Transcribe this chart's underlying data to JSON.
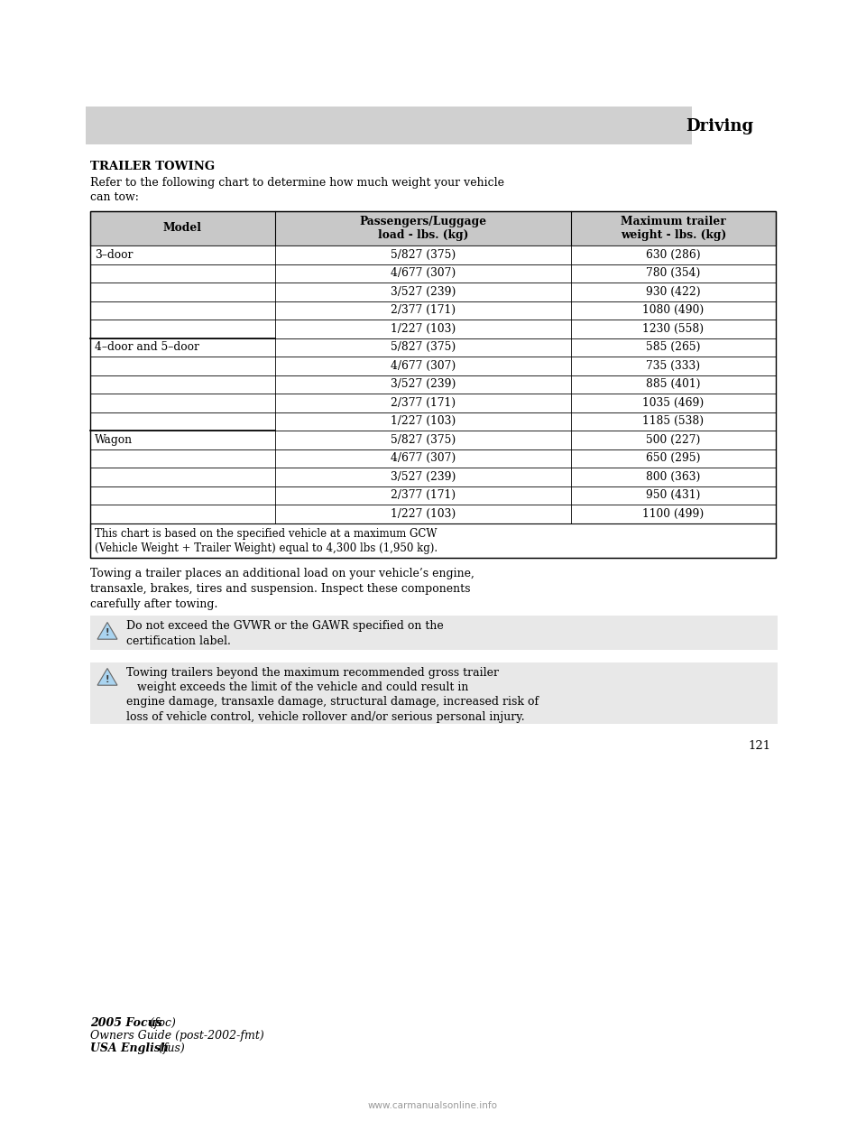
{
  "page_header_text": "Driving",
  "header_bg_color": "#d0d0d0",
  "section_title": "TRAILER TOWING",
  "intro_text": "Refer to the following chart to determine how much weight your vehicle\ncan tow:",
  "table_header": [
    "Model",
    "Passengers/Luggage\nload - lbs. (kg)",
    "Maximum trailer\nweight - lbs. (kg)"
  ],
  "table_data": [
    [
      "3–door",
      "5/827 (375)",
      "630 (286)"
    ],
    [
      "",
      "4/677 (307)",
      "780 (354)"
    ],
    [
      "",
      "3/527 (239)",
      "930 (422)"
    ],
    [
      "",
      "2/377 (171)",
      "1080 (490)"
    ],
    [
      "",
      "1/227 (103)",
      "1230 (558)"
    ],
    [
      "4–door and 5–door",
      "5/827 (375)",
      "585 (265)"
    ],
    [
      "",
      "4/677 (307)",
      "735 (333)"
    ],
    [
      "",
      "3/527 (239)",
      "885 (401)"
    ],
    [
      "",
      "2/377 (171)",
      "1035 (469)"
    ],
    [
      "",
      "1/227 (103)",
      "1185 (538)"
    ],
    [
      "Wagon",
      "5/827 (375)",
      "500 (227)"
    ],
    [
      "",
      "4/677 (307)",
      "650 (295)"
    ],
    [
      "",
      "3/527 (239)",
      "800 (363)"
    ],
    [
      "",
      "2/377 (171)",
      "950 (431)"
    ],
    [
      "",
      "1/227 (103)",
      "1100 (499)"
    ]
  ],
  "table_footer": "This chart is based on the specified vehicle at a maximum GCW\n(Vehicle Weight + Trailer Weight) equal to 4,300 lbs (1,950 kg).",
  "body_text": "Towing a trailer places an additional load on your vehicle’s engine,\ntransaxle, brakes, tires and suspension. Inspect these components\ncarefully after towing.",
  "warning1_text": "Do not exceed the GVWR or the GAWR specified on the\ncertification label.",
  "warning2_text": "Towing trailers beyond the maximum recommended gross trailer\n   weight exceeds the limit of the vehicle and could result in\nengine damage, transaxle damage, structural damage, increased risk of\nloss of vehicle control, vehicle rollover and/or serious personal injury.",
  "page_number": "121",
  "footer_line1_bold": "2005 Focus",
  "footer_line1_italic": " (foc)",
  "footer_line2": "Owners Guide (post-2002-fmt)",
  "footer_line3_bold": "USA English",
  "footer_line3_italic": " (fus)",
  "warning_bg_color": "#e8e8e8",
  "table_header_bg_color": "#c8c8c8",
  "table_border_color": "#000000",
  "text_color": "#000000",
  "white": "#ffffff",
  "watermark": "www.carmanualsonline.info"
}
